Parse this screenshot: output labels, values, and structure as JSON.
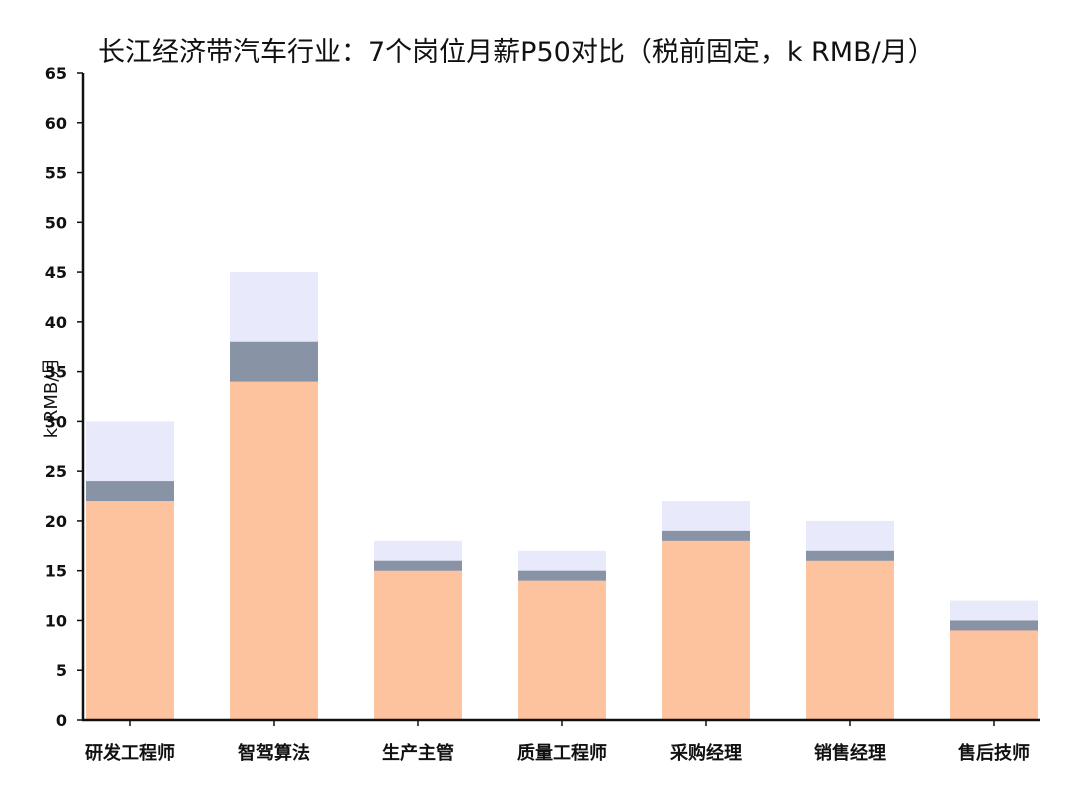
{
  "chart_data": {
    "type": "bar",
    "title": "长江经济带汽车行业：7个岗位月薪P50对比（税前固定，k RMB/月）",
    "xlabel": "",
    "ylabel": "k RMB/月",
    "ylim": [
      0,
      65
    ],
    "yticks": [
      0,
      5,
      10,
      15,
      20,
      25,
      30,
      35,
      40,
      45,
      50,
      55,
      60,
      65
    ],
    "grid": false,
    "legend": "none",
    "categories": [
      "研发工程师",
      "智驾算法",
      "生产主管",
      "质量工程师",
      "采购经理",
      "销售经理",
      "售后技师"
    ],
    "series": [
      {
        "values": [
          30,
          45,
          18,
          17,
          22,
          20,
          12
        ],
        "color": "#e8eafb"
      },
      {
        "values": [
          24,
          38,
          16,
          15,
          19,
          17,
          10
        ],
        "color": "#8893a6"
      },
      {
        "values": [
          22,
          34,
          15,
          14,
          18,
          16,
          9
        ],
        "color": "#fdc39e"
      }
    ]
  }
}
